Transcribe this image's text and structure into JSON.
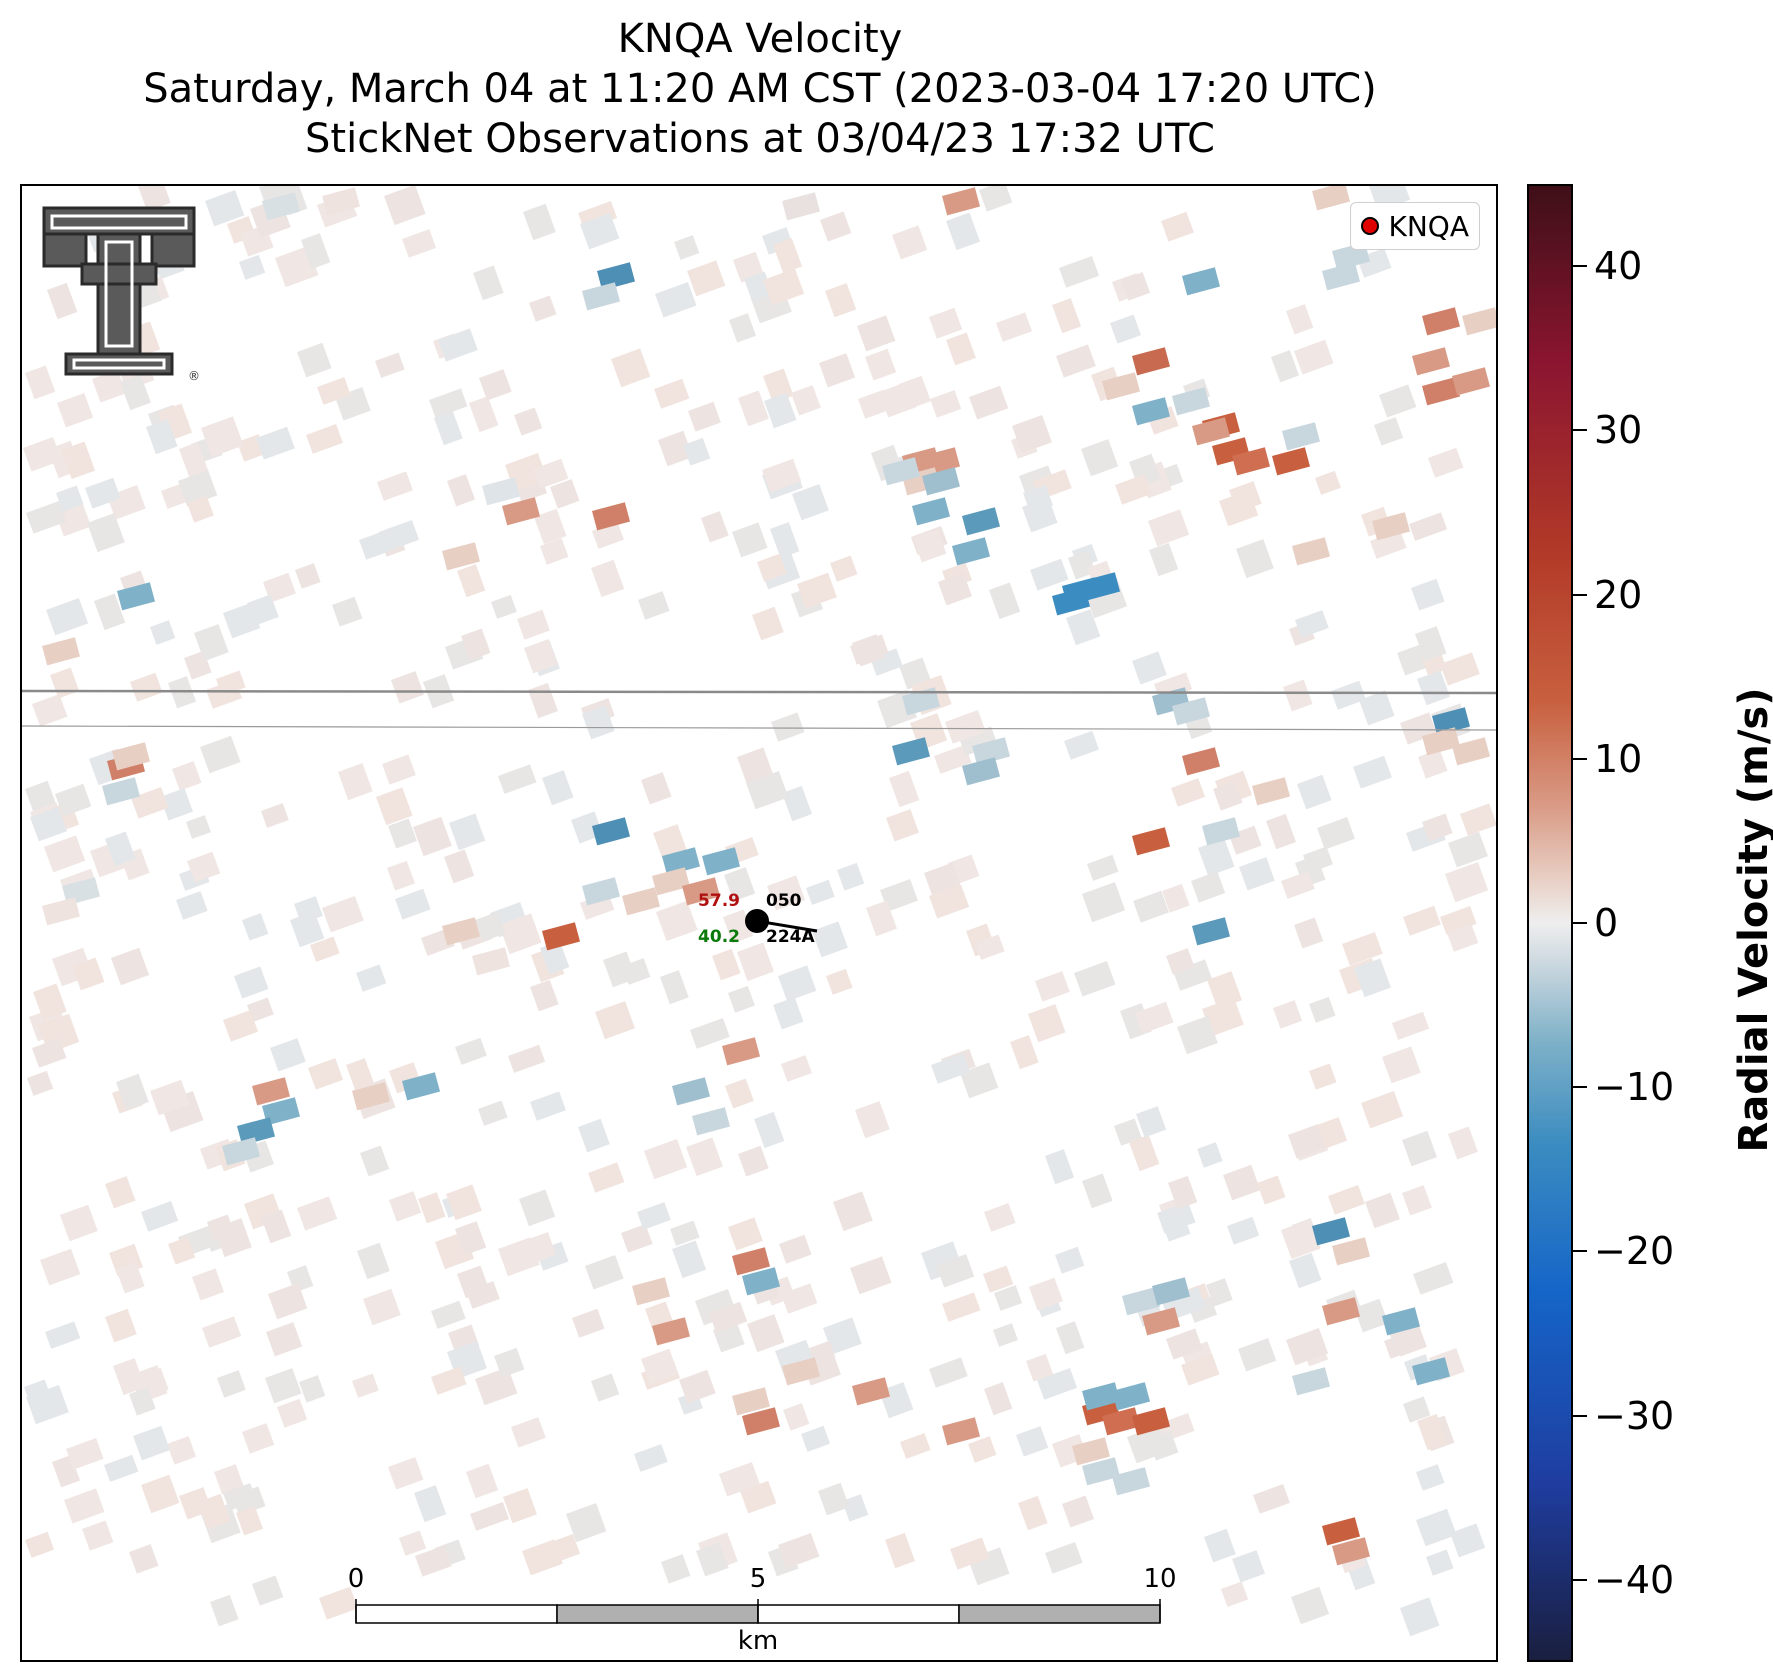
{
  "title": {
    "line1": "KNQA Velocity",
    "line2": "Saturday, March 04 at 11:20 AM CST (2023-03-04 17:20 UTC)",
    "line3": "StickNet Observations at 03/04/23 17:32 UTC"
  },
  "legend": {
    "label": "KNQA",
    "marker_color": "#e00000"
  },
  "station": {
    "temperature": "57.9",
    "dewpoint": "40.2",
    "pressure": "050",
    "id": "224A",
    "temperature_color": "#b01010",
    "dewpoint_color": "#0a7a0a"
  },
  "colorbar": {
    "label": "Radial Velocity (m/s)",
    "min": -45,
    "max": 45,
    "ticks": [
      "40",
      "30",
      "20",
      "10",
      "0",
      "−10",
      "−20",
      "−30",
      "−40"
    ]
  },
  "scalebar": {
    "ticks": [
      "0",
      "5",
      "10"
    ],
    "unit": "km"
  },
  "logo": {
    "name": "texas-tech-double-t-logo"
  }
}
